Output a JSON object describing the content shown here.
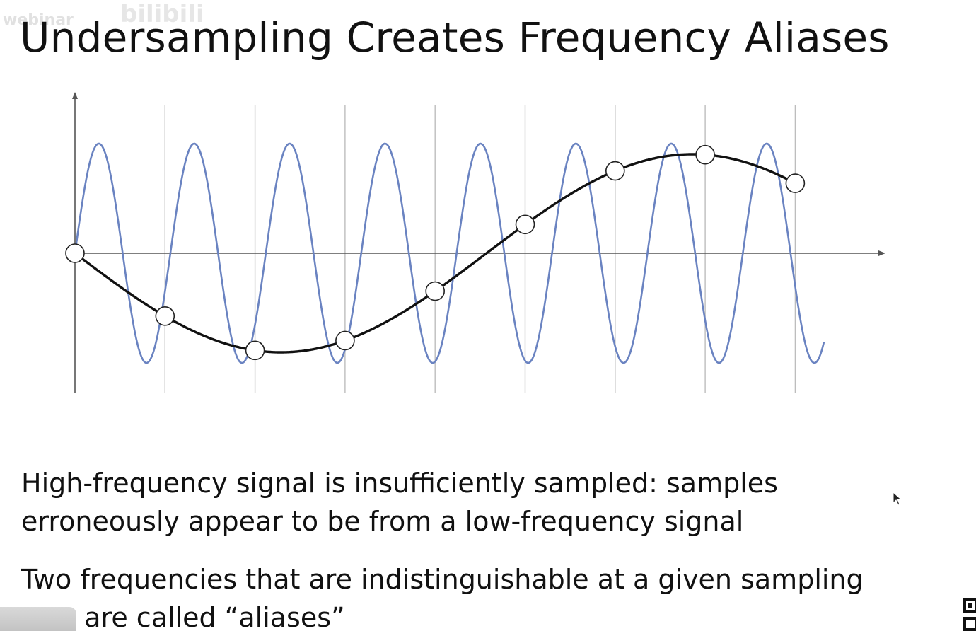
{
  "slide": {
    "title": "Undersampling Creates Frequency Aliases",
    "watermark_text": "webinar",
    "watermark_logo": "bilibili",
    "paragraphs": [
      {
        "line1": "High-frequency signal is insufficiently sampled: samples",
        "line2": "erroneously appear to be from a low-frequency signal"
      },
      {
        "line1": "Two frequencies that are indistinguishable at a given sampling",
        "line2": "rate are called “aliases”"
      }
    ]
  },
  "figure": {
    "high_frequency_color": "#6a83c1",
    "low_frequency_color": "#111111",
    "axis_color": "#555555",
    "gridline_color": "#bdbdbd",
    "high_frequency_cycles": 7.85,
    "low_frequency_cycles": 0.91,
    "sample_count": 9,
    "icons": [
      "cursor-icon",
      "qr-code-icon"
    ]
  }
}
